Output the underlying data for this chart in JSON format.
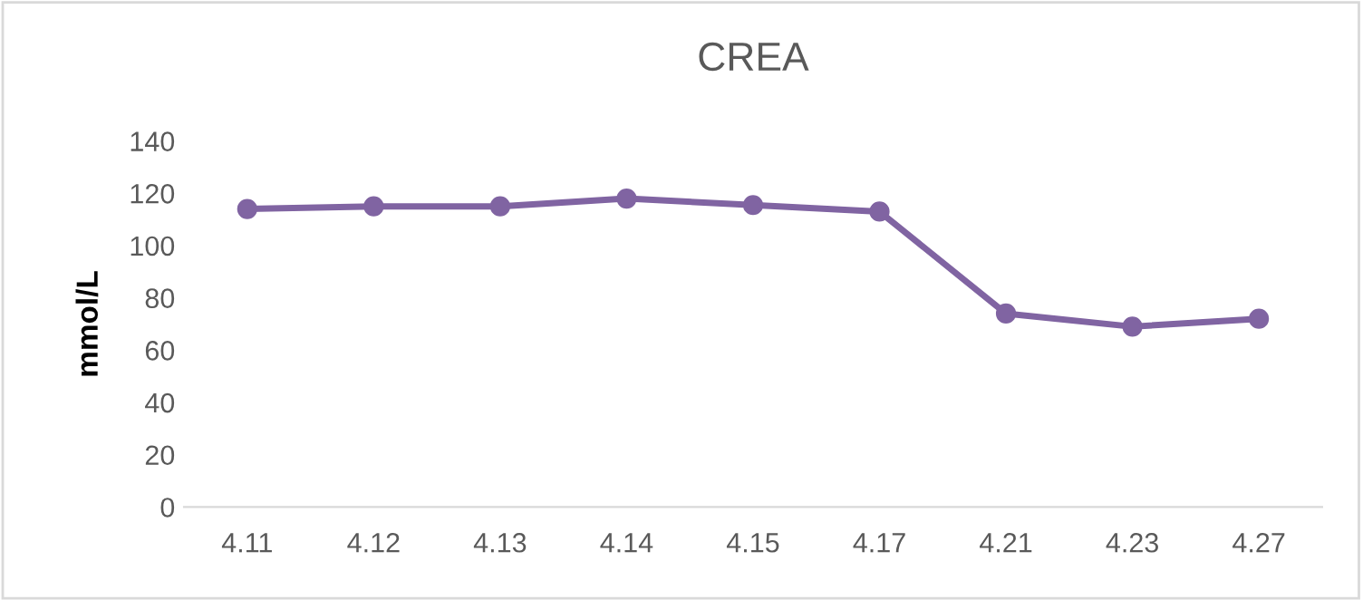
{
  "chart_data": {
    "type": "line",
    "title": "CREA",
    "ylabel": "mmol/L",
    "categories": [
      "4.11",
      "4.12",
      "4.13",
      "4.14",
      "4.15",
      "4.17",
      "4.21",
      "4.23",
      "4.27"
    ],
    "series": [
      {
        "color": "#8064a2",
        "values": [
          114,
          115,
          115,
          118,
          115.5,
          113,
          74,
          69,
          72
        ]
      }
    ],
    "ylim": [
      0,
      140
    ],
    "yticks": [
      0,
      20,
      40,
      60,
      80,
      100,
      120,
      140
    ],
    "grid": false,
    "legend": false,
    "marker": "circle",
    "line_style": "solid"
  }
}
